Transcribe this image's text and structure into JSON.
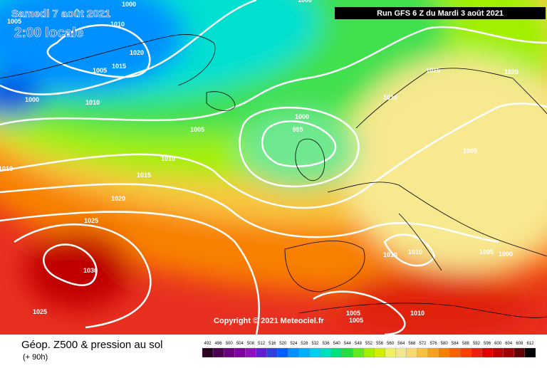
{
  "header": {
    "date": "Samedi 7 août 2021",
    "time": "2:00 locale",
    "run": "Run GFS 6 Z du Mardi 3 août 2021"
  },
  "copyright": "Copyright © 2021 Meteociel.fr",
  "footer": {
    "title": "Géop. Z500 & pression au sol",
    "lead": "(+ 90h)"
  },
  "isobar_labels": [
    "1000",
    "1000",
    "1005",
    "1010",
    "1020",
    "1015",
    "1005",
    "1000",
    "1010",
    "1005",
    "1000",
    "995",
    "1010",
    "1015",
    "1010",
    "1020",
    "1025",
    "1030",
    "1025",
    "1015",
    "1020",
    "1010",
    "1005",
    "1010",
    "1010",
    "1005",
    "1000",
    "1005",
    "1005",
    "1010"
  ],
  "legend": {
    "values": [
      492,
      496,
      500,
      504,
      508,
      512,
      516,
      520,
      524,
      528,
      532,
      536,
      540,
      544,
      548,
      552,
      556,
      560,
      564,
      568,
      572,
      576,
      580,
      584,
      588,
      592,
      596,
      600,
      604,
      608,
      612
    ],
    "colors": [
      "#2a0020",
      "#4b0050",
      "#6a0080",
      "#8000a0",
      "#9010c0",
      "#6020d0",
      "#3040e0",
      "#0060ff",
      "#0090ff",
      "#00b0ff",
      "#00d0f0",
      "#00e0c0",
      "#00e080",
      "#20e040",
      "#60e820",
      "#a0f000",
      "#d0f000",
      "#f0f060",
      "#f0e890",
      "#f8d870",
      "#f8c040",
      "#f8a020",
      "#f88000",
      "#f86000",
      "#f84000",
      "#f02010",
      "#e00000",
      "#c00000",
      "#a00000",
      "#600000",
      "#000000"
    ]
  }
}
